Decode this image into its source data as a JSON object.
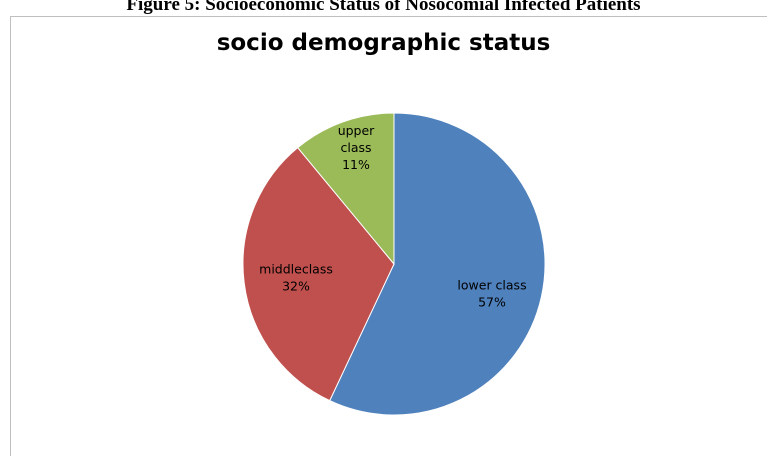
{
  "figure_caption": "Figure 5: Socioeconomic Status of Nosocomial Infected Patients",
  "chart_data": {
    "type": "pie",
    "title": "socio demographic status",
    "slices": [
      {
        "label": "lower class",
        "value": 57,
        "display": "57%",
        "color": "#4f81bd"
      },
      {
        "label": "middleclass",
        "value": 32,
        "display": "32%",
        "color": "#c0504d"
      },
      {
        "label": "upper class",
        "value": 11,
        "display": "11%",
        "color": "#9bbb59"
      }
    ],
    "start_angle_deg": 0,
    "direction": "clockwise"
  }
}
